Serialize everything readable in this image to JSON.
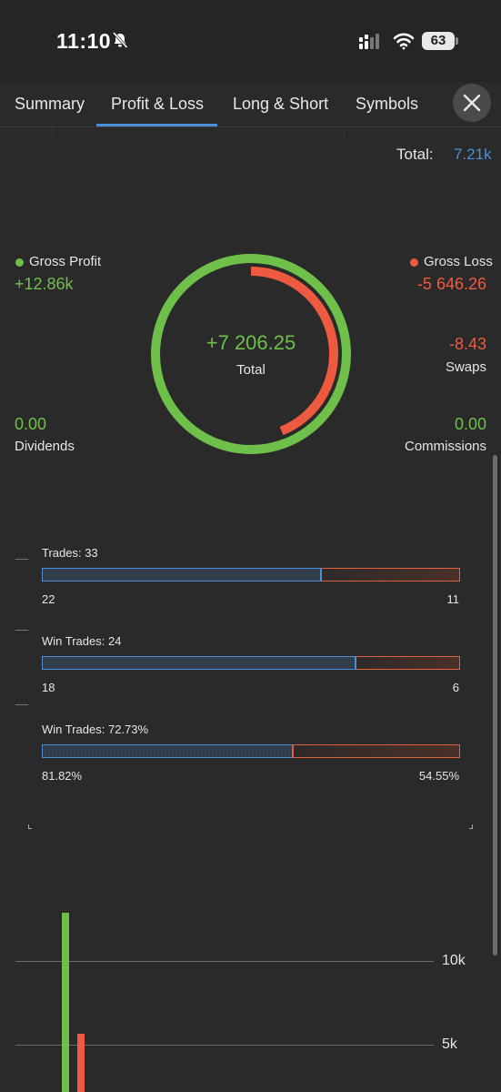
{
  "status_bar": {
    "time": "11:10",
    "battery": "63"
  },
  "tabs": [
    {
      "label": "Summary"
    },
    {
      "label": "Profit & Loss",
      "active": true
    },
    {
      "label": "Long & Short"
    },
    {
      "label": "Symbols"
    }
  ],
  "total": {
    "label": "Total:",
    "value": "7.21k"
  },
  "pnl": {
    "gross_profit_label": "Gross Profit",
    "gross_profit_value": "+12.86k",
    "gross_loss_label": "Gross Loss",
    "gross_loss_value": "-5 646.26",
    "swaps_value": "-8.43",
    "swaps_label": "Swaps",
    "dividends_value": "0.00",
    "dividends_label": "Dividends",
    "commissions_value": "0.00",
    "commissions_label": "Commissions",
    "center_value": "+7 206.25",
    "center_label": "Total",
    "colors": {
      "profit": "#6fc04a",
      "loss": "#ee5a40",
      "accent": "#4a90d9"
    },
    "ring_profit_fraction": 1.0,
    "ring_loss_fraction": 0.44
  },
  "bars": [
    {
      "title": "Trades: 33",
      "left": "22",
      "right": "11",
      "blue_fraction": 0.667
    },
    {
      "title": "Win Trades: 24",
      "left": "18",
      "right": "6",
      "blue_fraction": 0.75
    },
    {
      "title": "Win Trades: 72.73%",
      "left": "81.82%",
      "right": "54.55%",
      "blue_fraction": 0.6
    }
  ],
  "chart_data": {
    "type": "bar",
    "categories": [
      "Gross Profit",
      "Gross Loss"
    ],
    "values": [
      12860,
      5646.26
    ],
    "colors": [
      "#6fc04a",
      "#ee5a40"
    ],
    "yticks": [
      "10k",
      "5k"
    ],
    "ytick_values": [
      10000,
      5000
    ],
    "grid": true
  }
}
